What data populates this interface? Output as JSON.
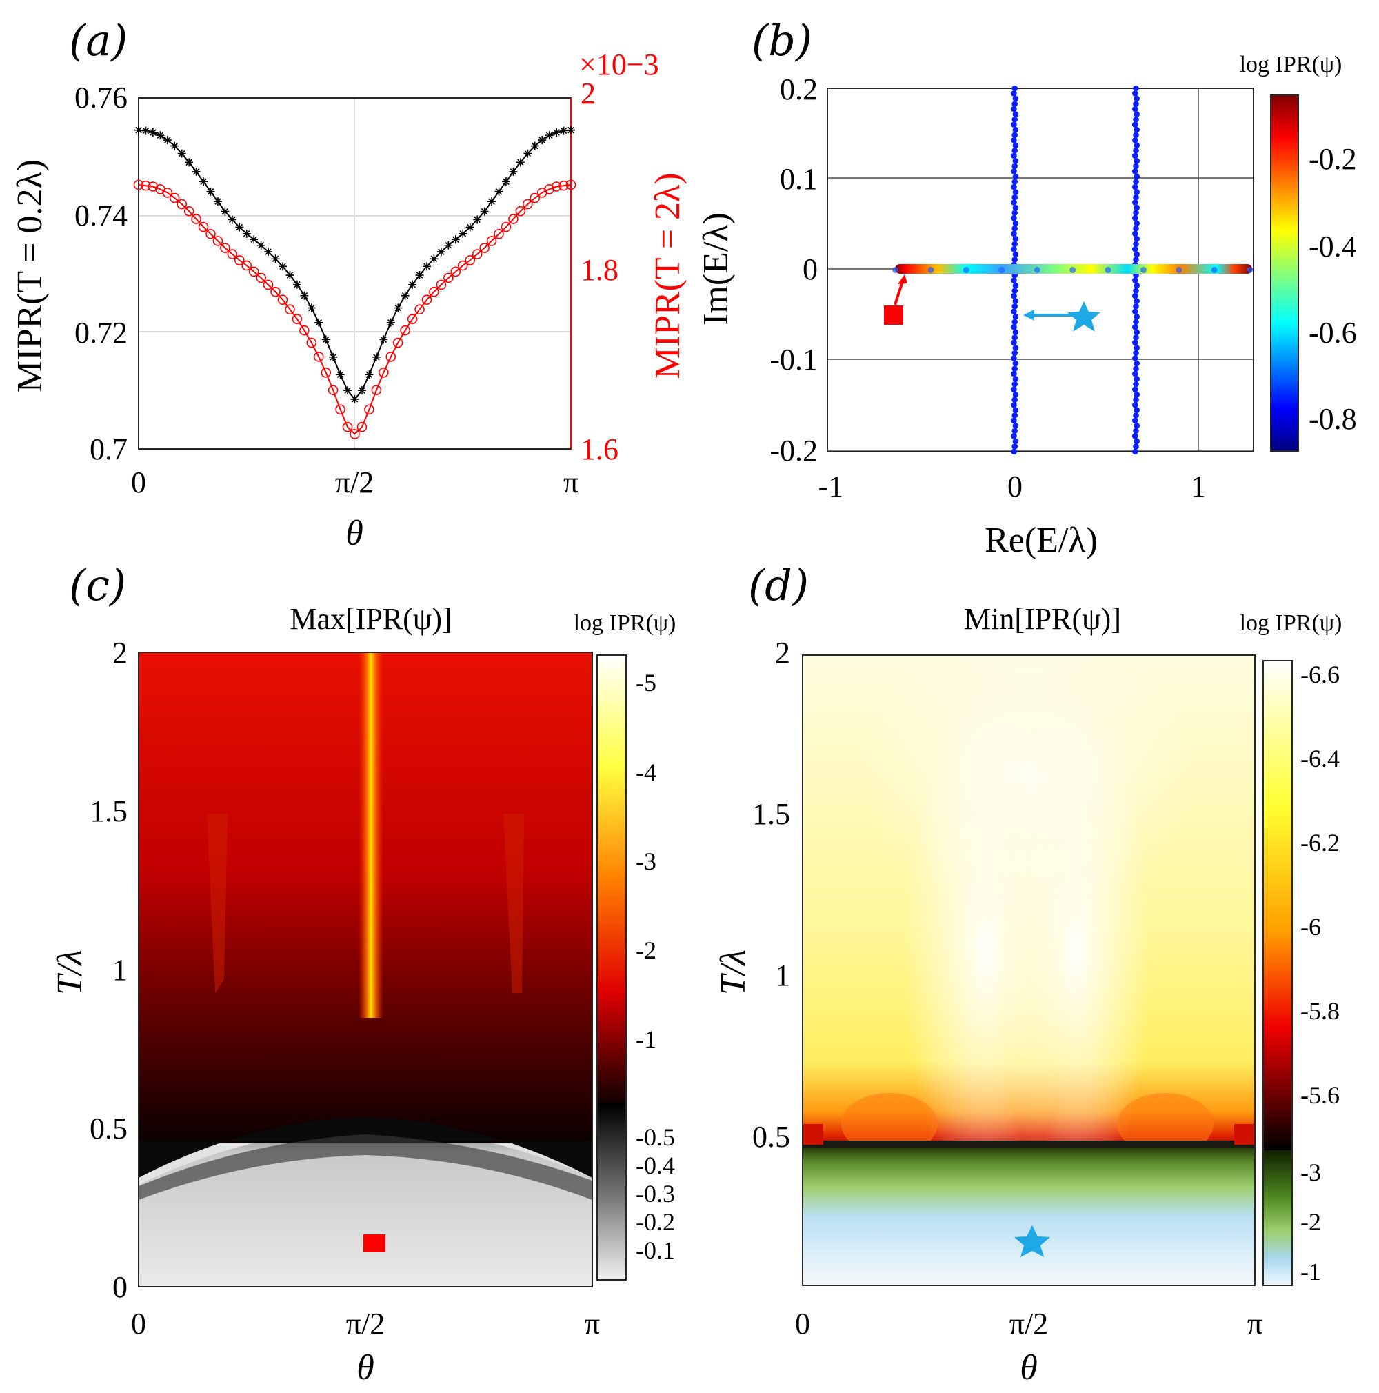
{
  "colors": {
    "red": "#ff0000",
    "black": "#000000",
    "blue": "#0a1fff",
    "cyan": "#1ea8e6",
    "grid": "#d8d8d8"
  },
  "chart_data": [
    {
      "panel": "(a)",
      "type": "line",
      "title": "",
      "xlabel": "θ",
      "ylabel": "MIPR(T = 0.2λ)",
      "ylabel_right": "MIPR(T = 2λ)",
      "right_exponent": "×10−3",
      "xlim": [
        0,
        3.1416
      ],
      "ylim": [
        0.7,
        0.76
      ],
      "ylim_right": [
        1.6,
        2.0
      ],
      "xticks": [
        "0",
        "π/2",
        "π"
      ],
      "yticks": [
        "0.7",
        "0.72",
        "0.74",
        "0.76"
      ],
      "yticks_right": [
        "1.6",
        "1.8",
        "2"
      ],
      "grid": true,
      "series": [
        {
          "axis": "left",
          "color": "#000000",
          "marker": "asterisk",
          "x": [
            0,
            0.0524,
            0.1047,
            0.1571,
            0.2094,
            0.2618,
            0.3142,
            0.3665,
            0.4189,
            0.4712,
            0.5236,
            0.576,
            0.6283,
            0.6807,
            0.733,
            0.7854,
            0.8378,
            0.8901,
            0.9425,
            0.9948,
            1.0472,
            1.0996,
            1.1519,
            1.2043,
            1.2566,
            1.309,
            1.3614,
            1.4137,
            1.4661,
            1.5184,
            1.5708,
            1.6232,
            1.6755,
            1.7279,
            1.7802,
            1.8326,
            1.885,
            1.9373,
            1.9897,
            2.042,
            2.0944,
            2.1468,
            2.1991,
            2.2515,
            2.3038,
            2.3562,
            2.4086,
            2.4609,
            2.5133,
            2.5656,
            2.618,
            2.6704,
            2.7227,
            2.7751,
            2.8274,
            2.8798,
            2.9322,
            2.9845,
            3.0369,
            3.0892,
            3.1416
          ],
          "y": [
            0.7545,
            0.7544,
            0.7541,
            0.7536,
            0.7528,
            0.7518,
            0.7505,
            0.749,
            0.7474,
            0.7457,
            0.744,
            0.7423,
            0.7406,
            0.7392,
            0.7379,
            0.7368,
            0.7358,
            0.7348,
            0.7337,
            0.7325,
            0.7312,
            0.7297,
            0.7281,
            0.7262,
            0.7241,
            0.7216,
            0.7187,
            0.7157,
            0.7127,
            0.71,
            0.7085,
            0.71,
            0.7127,
            0.7157,
            0.7187,
            0.7216,
            0.7241,
            0.7262,
            0.7281,
            0.7297,
            0.7312,
            0.7325,
            0.7337,
            0.7348,
            0.7358,
            0.7368,
            0.7379,
            0.7392,
            0.7406,
            0.7423,
            0.744,
            0.7457,
            0.7474,
            0.749,
            0.7505,
            0.7518,
            0.7528,
            0.7536,
            0.7541,
            0.7544,
            0.7545
          ]
        },
        {
          "axis": "right",
          "color": "#ff0000",
          "marker": "circle",
          "x": [
            0,
            0.0524,
            0.1047,
            0.1571,
            0.2094,
            0.2618,
            0.3142,
            0.3665,
            0.4189,
            0.4712,
            0.5236,
            0.576,
            0.6283,
            0.6807,
            0.733,
            0.7854,
            0.8378,
            0.8901,
            0.9425,
            0.9948,
            1.0472,
            1.0996,
            1.1519,
            1.2043,
            1.2566,
            1.309,
            1.3614,
            1.4137,
            1.4661,
            1.5184,
            1.5708,
            1.6232,
            1.6755,
            1.7279,
            1.7802,
            1.8326,
            1.885,
            1.9373,
            1.9897,
            2.042,
            2.0944,
            2.1468,
            2.1991,
            2.2515,
            2.3038,
            2.3562,
            2.4086,
            2.4609,
            2.5133,
            2.5656,
            2.618,
            2.6704,
            2.7227,
            2.7751,
            2.8274,
            2.8798,
            2.9322,
            2.9845,
            3.0369,
            3.0892,
            3.1416
          ],
          "y": [
            1.901,
            1.9,
            1.899,
            1.896,
            1.892,
            1.886,
            1.879,
            1.871,
            1.862,
            1.853,
            1.845,
            1.837,
            1.829,
            1.822,
            1.815,
            1.809,
            1.802,
            1.795,
            1.787,
            1.779,
            1.77,
            1.759,
            1.748,
            1.735,
            1.721,
            1.705,
            1.687,
            1.667,
            1.645,
            1.625,
            1.617,
            1.625,
            1.645,
            1.667,
            1.687,
            1.705,
            1.721,
            1.735,
            1.748,
            1.759,
            1.77,
            1.779,
            1.787,
            1.795,
            1.802,
            1.809,
            1.815,
            1.822,
            1.829,
            1.837,
            1.845,
            1.853,
            1.862,
            1.871,
            1.879,
            1.886,
            1.892,
            1.896,
            1.899,
            1.9,
            1.901
          ]
        }
      ]
    },
    {
      "panel": "(b)",
      "type": "scatter",
      "title": "",
      "xlabel": "Re(E/λ)",
      "ylabel": "Im(E/λ)",
      "xlim": [
        -1,
        1.32
      ],
      "ylim": [
        -0.205,
        0.205
      ],
      "xticks": [
        "-1",
        "0",
        "1"
      ],
      "yticks": [
        "0.2",
        "0.1",
        "0",
        "-0.1",
        "-0.2"
      ],
      "grid": true,
      "colorbar": {
        "label": "log IPR(ψ)",
        "ticks": [
          "-0.2",
          "-0.4",
          "-0.6",
          "-0.8"
        ],
        "range": [
          -0.88,
          -0.03
        ]
      },
      "real_axis_points": {
        "x_range": [
          -0.63,
          1.3
        ],
        "y": 0,
        "note_color_by": "log IPR"
      },
      "vertical_bands": [
        {
          "re": 0.02,
          "im_range": [
            -0.205,
            0.205
          ]
        },
        {
          "re": 0.68,
          "im_range": [
            -0.205,
            0.205
          ]
        }
      ],
      "markers": [
        {
          "symbol": "square",
          "color": "#ff0000",
          "re": -0.64,
          "im": -0.05,
          "points_to": [
            -0.58,
            0
          ]
        },
        {
          "symbol": "star",
          "color": "#1ea8e6",
          "re": 0.4,
          "im": -0.052,
          "points_to": [
            0.06,
            -0.052
          ]
        }
      ]
    },
    {
      "panel": "(c)",
      "type": "heatmap",
      "title": "Max[IPR(ψ)]",
      "xlabel": "θ",
      "ylabel": "T/λ",
      "xlim": [
        0,
        3.1416
      ],
      "ylim": [
        0,
        2
      ],
      "xticks": [
        "0",
        "π/2",
        "π"
      ],
      "yticks": [
        "0",
        "0.5",
        "1",
        "1.5",
        "2"
      ],
      "transition_T": 0.48,
      "colorbar": {
        "label": "log IPR(ψ)",
        "ticks_upper": [
          "-5",
          "-4",
          "-3",
          "-2",
          "-1"
        ],
        "ticks_lower": [
          "-0.5",
          "-0.4",
          "-0.3",
          "-0.2",
          "-0.1"
        ]
      },
      "marker": {
        "symbol": "square",
        "color": "#ff0000",
        "theta": 1.65,
        "T": 0.14
      }
    },
    {
      "panel": "(d)",
      "type": "heatmap",
      "title": "Min[IPR(ψ)]",
      "xlabel": "θ",
      "ylabel": "T/λ",
      "xlim": [
        0,
        3.1416
      ],
      "ylim": [
        0,
        2
      ],
      "xticks": [
        "0",
        "π/2",
        "π"
      ],
      "yticks": [
        "0.5",
        "1",
        "1.5",
        "2"
      ],
      "transition_T": 0.48,
      "colorbar": {
        "label": "log IPR(ψ)",
        "ticks_upper": [
          "-6.6",
          "-6.4",
          "-6.2",
          "-6",
          "-5.8",
          "-5.6"
        ],
        "ticks_lower": [
          "-3",
          "-2",
          "-1"
        ]
      },
      "marker": {
        "symbol": "star",
        "color": "#1ea8e6",
        "theta": 1.6,
        "T": 0.14
      }
    }
  ]
}
